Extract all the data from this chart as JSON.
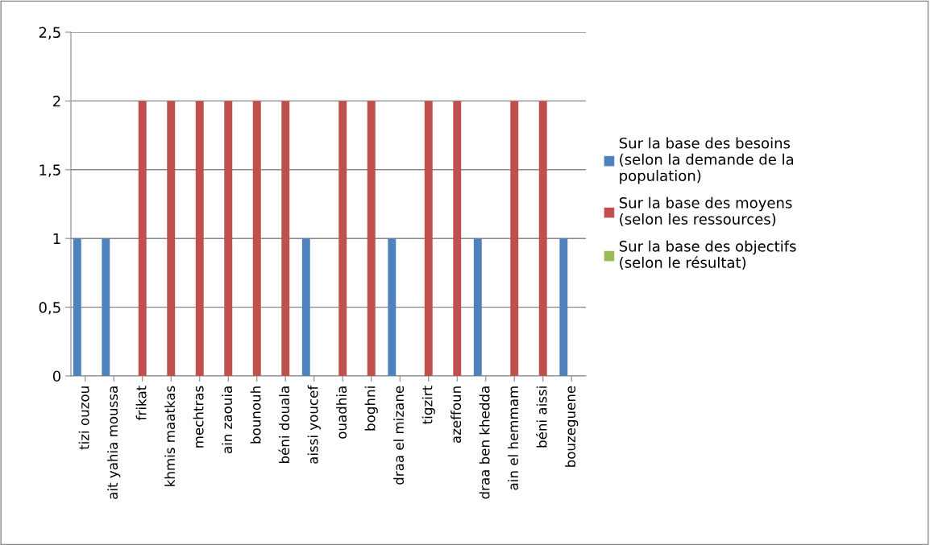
{
  "chart_data": {
    "type": "bar",
    "categories": [
      "tizi ouzou",
      "ait yahia moussa",
      "frikat",
      "khmis maatkas",
      "mechtras",
      "ain zaouia",
      "bounouh",
      "béni douala",
      "aissi youcef",
      "ouadhia",
      "boghni",
      "draa el mizane",
      "tigzirt",
      "azeffoun",
      "draa ben khedda",
      "ain el hemmam",
      "béni aissi",
      "bouzeguene"
    ],
    "series": [
      {
        "name": "Sur la base des besoins (selon la demande de la population)",
        "color": "#4f81bd",
        "values": [
          1,
          1,
          null,
          null,
          null,
          null,
          null,
          null,
          1,
          null,
          null,
          1,
          null,
          null,
          1,
          null,
          null,
          1
        ]
      },
      {
        "name": "Sur la base des moyens (selon les ressources)",
        "color": "#c0504d",
        "values": [
          null,
          null,
          2,
          2,
          2,
          2,
          2,
          2,
          null,
          2,
          2,
          null,
          2,
          2,
          null,
          2,
          2,
          null
        ]
      },
      {
        "name": "Sur la base des objectifs (selon le résultat)",
        "color": "#9bbb59",
        "values": [
          null,
          null,
          null,
          null,
          null,
          null,
          null,
          null,
          null,
          null,
          null,
          null,
          null,
          null,
          null,
          null,
          null,
          null
        ]
      }
    ],
    "ylim": [
      0,
      2.5
    ],
    "yticks": [
      0,
      {
        "value": 0.5,
        "label": "0,5"
      },
      1,
      {
        "value": 1.5,
        "label": "1,5"
      },
      2,
      {
        "value": 2.5,
        "label": "2,5"
      }
    ],
    "grid": "y",
    "legend": "right"
  }
}
